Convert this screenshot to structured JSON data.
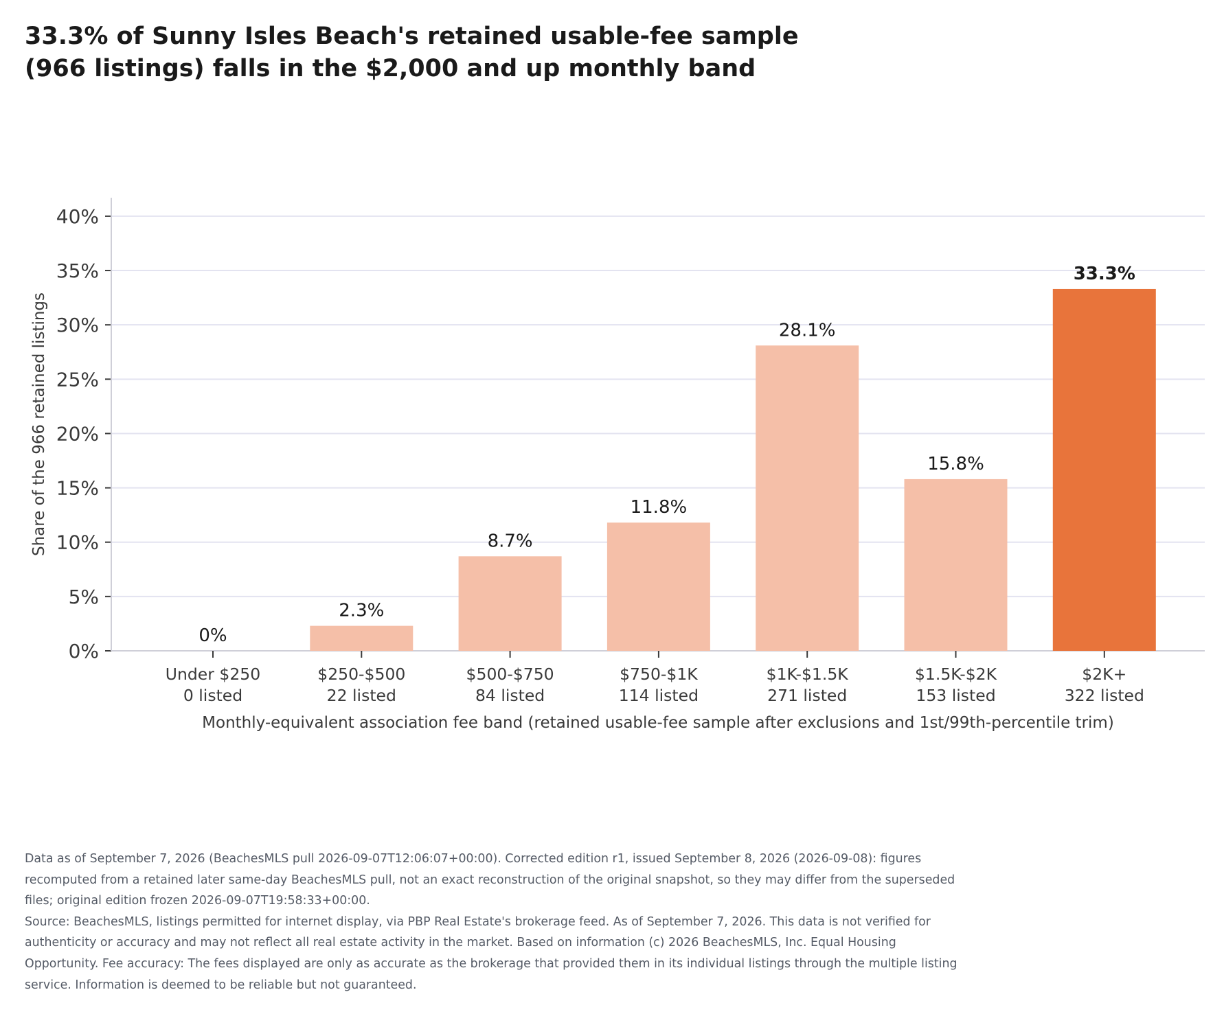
{
  "chart_data": {
    "type": "bar",
    "title": "33.3% of Sunny Isles Beach's retained usable-fee sample (966 listings) falls in the $2,000 and up monthly band",
    "xlabel": "Monthly-equivalent association fee band (retained usable-fee sample after exclusions and 1st/99th-percentile trim)",
    "ylabel": "Share of the 966 retained listings",
    "categories": [
      "Under $250",
      "$250-$500",
      "$500-$750",
      "$750-$1K",
      "$1K-$1.5K",
      "$1.5K-$2K",
      "$2K+"
    ],
    "category_counts": [
      "0 listed",
      "22 listed",
      "84 listed",
      "114 listed",
      "271 listed",
      "153 listed",
      "322 listed"
    ],
    "values": [
      0,
      2.3,
      8.7,
      11.8,
      28.1,
      15.8,
      33.3
    ],
    "value_labels": [
      "0%",
      "2.3%",
      "8.7%",
      "11.8%",
      "28.1%",
      "15.8%",
      "33.3%"
    ],
    "highlight_index": 6,
    "ylim": [
      0,
      41.7
    ],
    "yticks": [
      0,
      5,
      10,
      15,
      20,
      25,
      30,
      35,
      40
    ],
    "ytick_labels": [
      "0%",
      "5%",
      "10%",
      "15%",
      "20%",
      "25%",
      "30%",
      "35%",
      "40%"
    ],
    "grid": true,
    "colors": {
      "bar": "#f5bfa8",
      "highlight": "#e8743b",
      "grid": "#e3e3f0",
      "axis": "#cfcfd8",
      "text": "#1a1a1a",
      "muted": "#3a3a3a"
    }
  },
  "footnotes": [
    "Data as of September 7, 2026 (BeachesMLS pull 2026-09-07T12:06:07+00:00). Corrected edition r1, issued September 8, 2026 (2026-09-08): figures recomputed from a retained later same-day BeachesMLS pull, not an exact reconstruction of the original snapshot, so they may differ from the superseded files; original edition frozen 2026-09-07T19:58:33+00:00.",
    "Source: BeachesMLS, listings permitted for internet display, via PBP Real Estate's brokerage feed. As of September 7, 2026. This data is not verified for authenticity or accuracy and may not reflect all real estate activity in the market. Based on information (c) 2026 BeachesMLS, Inc. Equal Housing Opportunity. Fee accuracy: The fees displayed are only as accurate as the brokerage that provided them in its individual listings through the multiple listing service. Information is deemed to be reliable but not guaranteed."
  ]
}
